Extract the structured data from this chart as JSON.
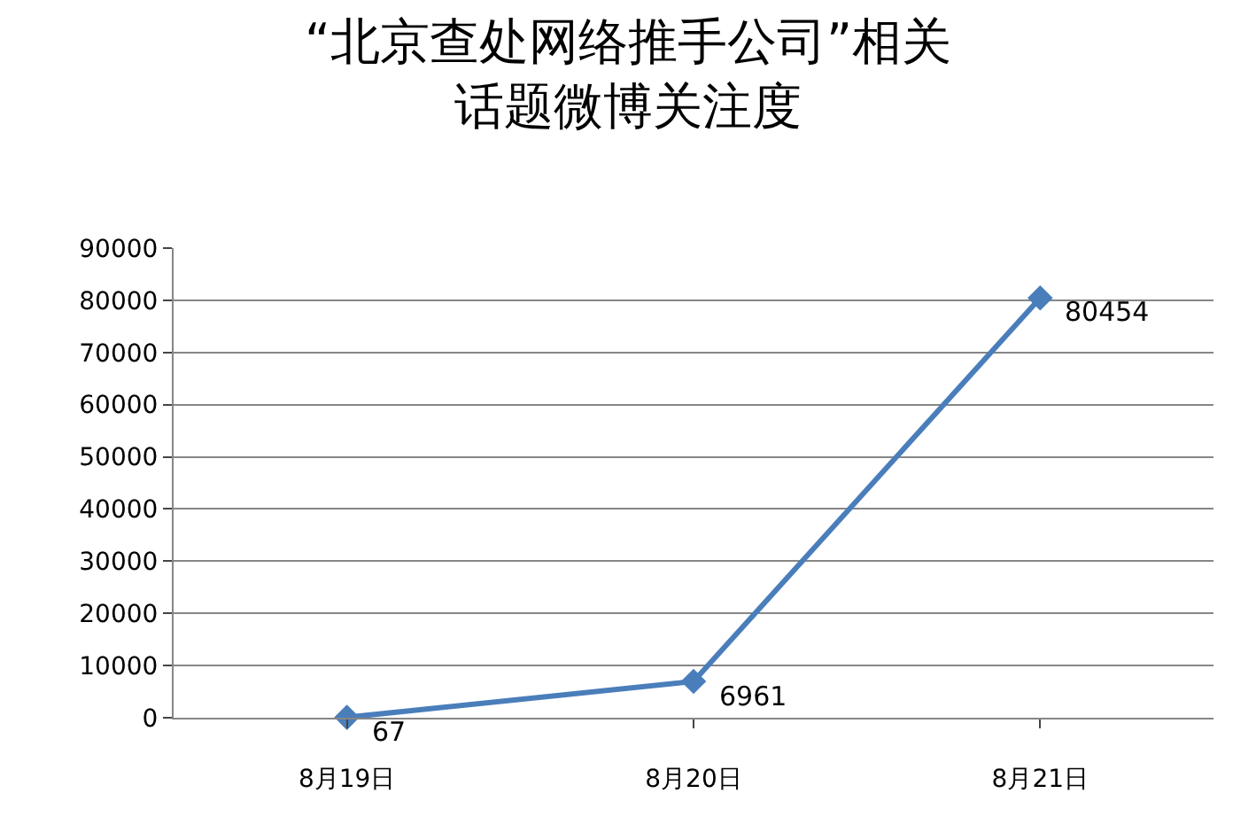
{
  "chart_data": {
    "type": "line",
    "title": "“北京查处网络推手公司”相关话题微博关注度",
    "categories": [
      "8月19日",
      "8月20日",
      "8月21日"
    ],
    "series": [
      {
        "color": "#4a7ebb",
        "values": [
          67,
          6961,
          80454
        ]
      }
    ],
    "ylim": [
      0,
      90000
    ],
    "yticks": [
      0,
      10000,
      20000,
      30000,
      40000,
      50000,
      60000,
      70000,
      80000,
      90000
    ],
    "grid": "y",
    "marker": "diamond",
    "line_style": "solid",
    "data_labels": true
  }
}
